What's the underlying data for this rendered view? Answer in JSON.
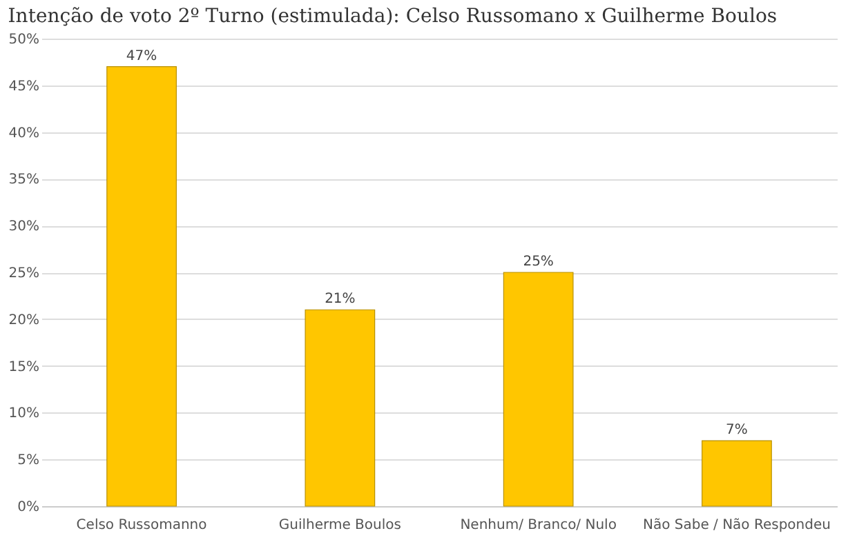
{
  "chart_data": {
    "type": "bar",
    "title": "Intenção de voto 2º Turno (estimulada): Celso Russomano x Guilherme Boulos",
    "categories": [
      "Celso Russomanno",
      "Guilherme Boulos",
      "Nenhum/ Branco/ Nulo",
      "Não Sabe / Não Respondeu"
    ],
    "values": [
      47,
      21,
      25,
      7
    ],
    "value_labels": [
      "47%",
      "21%",
      "25%",
      "7%"
    ],
    "color": "#ffc600",
    "ylim": [
      0,
      50
    ],
    "yticks": [
      {
        "value": 0,
        "label": "0%"
      },
      {
        "value": 5,
        "label": "5%"
      },
      {
        "value": 10,
        "label": "10%"
      },
      {
        "value": 15,
        "label": "15%"
      },
      {
        "value": 20,
        "label": "20%"
      },
      {
        "value": 25,
        "label": "25%"
      },
      {
        "value": 30,
        "label": "30%"
      },
      {
        "value": 35,
        "label": "35%"
      },
      {
        "value": 40,
        "label": "40%"
      },
      {
        "value": 45,
        "label": "45%"
      },
      {
        "value": 50,
        "label": "50%"
      }
    ],
    "grid": "y"
  }
}
